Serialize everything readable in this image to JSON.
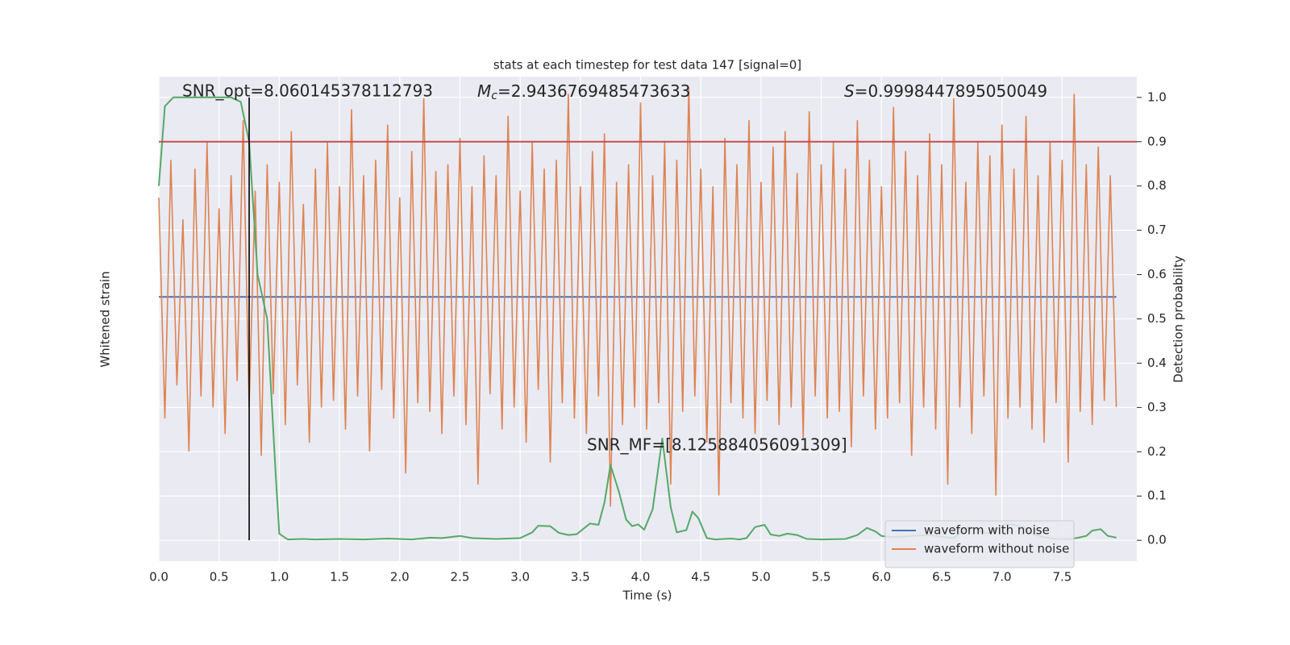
{
  "chart_data": {
    "type": "line",
    "title": "stats at each timestep for test data 147 [signal=0]",
    "xlabel": "Time (s)",
    "ylabel": "Whitened strain",
    "y2label": "Detection probability",
    "xlim": [
      0,
      8.12
    ],
    "xticks": [
      {
        "value": 0,
        "label": "0.0"
      },
      0.5,
      {
        "value": 1,
        "label": "1.0"
      },
      1.5,
      {
        "value": 2,
        "label": "2.0"
      },
      2.5,
      {
        "value": 3,
        "label": "3.0"
      },
      3.5,
      {
        "value": 4,
        "label": "4.0"
      },
      4.5,
      {
        "value": 5,
        "label": "5.0"
      },
      5.5,
      {
        "value": 6,
        "label": "6.0"
      },
      6.5,
      {
        "value": 7,
        "label": "7.0"
      },
      7.5
    ],
    "ylim": [
      -1.2,
      1
    ],
    "y2lim": [
      -0.047,
      1.047
    ],
    "y2ticks": [
      {
        "value": 0,
        "label": "0.0"
      },
      0.1,
      0.2,
      0.3,
      0.4,
      0.5,
      0.6,
      0.7,
      0.8,
      0.9,
      {
        "value": 1,
        "label": "1.0"
      }
    ],
    "grid": true,
    "legend": "lower right",
    "series": [
      {
        "name": "waveform with noise",
        "color": "#4c72b0",
        "x": [
          0,
          7.95
        ],
        "values": [
          0,
          0
        ]
      },
      {
        "name": "waveform without noise",
        "color": "#dd8452",
        "x": [
          0,
          0.05,
          0.1,
          0.15,
          0.2,
          0.25,
          0.3,
          0.35,
          0.4,
          0.45,
          0.5,
          0.55,
          0.6,
          0.65,
          0.7,
          0.75,
          0.8,
          0.85,
          0.9,
          0.95,
          1,
          1.05,
          1.1,
          1.15,
          1.2,
          1.25,
          1.3,
          1.35,
          1.4,
          1.45,
          1.5,
          1.55,
          1.6,
          1.65,
          1.7,
          1.75,
          1.8,
          1.85,
          1.9,
          1.95,
          2,
          2.05,
          2.1,
          2.15,
          2.2,
          2.25,
          2.3,
          2.35,
          2.4,
          2.45,
          2.5,
          2.55,
          2.6,
          2.65,
          2.7,
          2.75,
          2.8,
          2.85,
          2.9,
          2.95,
          3,
          3.05,
          3.1,
          3.15,
          3.2,
          3.25,
          3.3,
          3.35,
          3.4,
          3.45,
          3.5,
          3.55,
          3.6,
          3.65,
          3.7,
          3.75,
          3.8,
          3.85,
          3.9,
          3.95,
          4,
          4.05,
          4.1,
          4.15,
          4.2,
          4.25,
          4.3,
          4.35,
          4.4,
          4.45,
          4.5,
          4.55,
          4.6,
          4.65,
          4.7,
          4.75,
          4.8,
          4.85,
          4.9,
          4.95,
          5,
          5.05,
          5.1,
          5.15,
          5.2,
          5.25,
          5.3,
          5.35,
          5.4,
          5.45,
          5.5,
          5.55,
          5.6,
          5.65,
          5.7,
          5.75,
          5.8,
          5.85,
          5.9,
          5.95,
          6,
          6.05,
          6.1,
          6.15,
          6.2,
          6.25,
          6.3,
          6.35,
          6.4,
          6.45,
          6.5,
          6.55,
          6.6,
          6.65,
          6.7,
          6.75,
          6.8,
          6.85,
          6.9,
          6.95,
          7,
          7.05,
          7.1,
          7.15,
          7.2,
          7.25,
          7.3,
          7.35,
          7.4,
          7.45,
          7.5,
          7.55,
          7.6,
          7.65,
          7.7,
          7.75,
          7.8,
          7.85,
          7.9,
          7.95
        ],
        "values": [
          0.45,
          -0.55,
          0.62,
          -0.4,
          0.35,
          -0.7,
          0.58,
          -0.45,
          0.7,
          -0.5,
          0.4,
          -0.62,
          0.55,
          -0.38,
          0.8,
          -0.5,
          0.48,
          -0.72,
          0.6,
          -0.44,
          0.52,
          -0.58,
          0.75,
          -0.4,
          0.42,
          -0.66,
          0.58,
          -0.5,
          0.7,
          -0.47,
          0.5,
          -0.6,
          0.85,
          -0.45,
          0.55,
          -0.7,
          0.62,
          -0.42,
          0.78,
          -0.55,
          0.45,
          -0.8,
          0.66,
          -0.48,
          0.9,
          -0.52,
          0.57,
          -0.62,
          0.6,
          -0.45,
          0.72,
          -0.58,
          0.5,
          -0.85,
          0.64,
          -0.44,
          0.55,
          -0.6,
          0.82,
          -0.5,
          0.48,
          -0.66,
          0.7,
          -0.42,
          0.58,
          -0.75,
          0.62,
          -0.48,
          0.92,
          -0.55,
          0.5,
          -0.62,
          0.66,
          -0.45,
          0.74,
          -0.95,
          0.52,
          -0.58,
          0.6,
          -0.5,
          0.88,
          -0.6,
          0.55,
          -0.48,
          0.7,
          -0.85,
          0.62,
          -0.52,
          0.95,
          -0.45,
          0.58,
          -0.66,
          0.5,
          -0.9,
          0.72,
          -0.48,
          0.6,
          -0.55,
          0.8,
          -0.62,
          0.52,
          -0.47,
          0.68,
          -0.58,
          0.75,
          -0.5,
          0.56,
          -0.64,
          0.84,
          -0.45,
          0.6,
          -0.55,
          0.7,
          -0.52,
          0.58,
          -0.68,
          0.8,
          -0.45,
          0.62,
          -0.6,
          0.5,
          -0.55,
          0.86,
          -0.48,
          0.66,
          -0.72,
          0.55,
          -0.5,
          0.74,
          -0.6,
          0.6,
          -0.85,
          0.9,
          -0.5,
          0.52,
          -0.62,
          0.7,
          -0.45,
          0.64,
          -0.9,
          0.78,
          -0.55,
          0.58,
          -0.5,
          0.82,
          -0.6,
          0.55,
          -0.66,
          0.7,
          -0.48,
          0.62,
          -0.75,
          0.92,
          -0.52,
          0.6,
          -0.58,
          0.68,
          -0.47,
          0.55,
          -0.5
        ]
      },
      {
        "color": "#55a868",
        "axis": "y2",
        "x": [
          0,
          0.05,
          0.12,
          0.2,
          0.3,
          0.4,
          0.5,
          0.6,
          0.68,
          0.75,
          0.82,
          0.9,
          0.97,
          1,
          1.07,
          1.2,
          1.3,
          1.5,
          1.7,
          1.9,
          2.1,
          2.25,
          2.35,
          2.5,
          2.6,
          2.8,
          3,
          3.1,
          3.15,
          3.25,
          3.32,
          3.4,
          3.47,
          3.58,
          3.65,
          3.7,
          3.75,
          3.82,
          3.88,
          3.93,
          3.98,
          4.03,
          4.1,
          4.18,
          4.25,
          4.3,
          4.38,
          4.43,
          4.48,
          4.55,
          4.62,
          4.75,
          4.82,
          4.88,
          4.95,
          5.03,
          5.08,
          5.15,
          5.22,
          5.3,
          5.38,
          5.5,
          5.7,
          5.8,
          5.88,
          5.95,
          6,
          6.1,
          6.25,
          6.4,
          6.5,
          6.6,
          6.72,
          6.8,
          6.88,
          6.95,
          7.03,
          7.1,
          7.18,
          7.25,
          7.35,
          7.45,
          7.55,
          7.62,
          7.7,
          7.75,
          7.82,
          7.88,
          7.95
        ],
        "values": [
          0.8,
          0.98,
          1,
          1,
          1,
          1,
          1,
          1,
          0.99,
          0.9,
          0.6,
          0.5,
          0.15,
          0.015,
          0.002,
          0.003,
          0.002,
          0.003,
          0.002,
          0.004,
          0.002,
          0.006,
          0.005,
          0.01,
          0.005,
          0.003,
          0.005,
          0.018,
          0.033,
          0.032,
          0.017,
          0.012,
          0.014,
          0.038,
          0.035,
          0.085,
          0.17,
          0.11,
          0.047,
          0.032,
          0.036,
          0.024,
          0.07,
          0.23,
          0.075,
          0.018,
          0.023,
          0.065,
          0.05,
          0.005,
          0.002,
          0.004,
          0.002,
          0.005,
          0.03,
          0.035,
          0.013,
          0.01,
          0.015,
          0.012,
          0.003,
          0.002,
          0.003,
          0.012,
          0.028,
          0.02,
          0.01,
          0.007,
          0.01,
          0.012,
          0.008,
          0.005,
          0.03,
          0.025,
          0.015,
          0.025,
          0.037,
          0.035,
          0.03,
          0.015,
          0.007,
          0.003,
          0.003,
          0.005,
          0.01,
          0.022,
          0.025,
          0.01,
          0.006
        ]
      }
    ],
    "hline": {
      "value": 0.9,
      "color": "#c44e52",
      "axis": "y2"
    },
    "vline": {
      "value": 0.75,
      "color": "#000000"
    },
    "annotations": [
      {
        "text": "SNR_opt=8.060145378112793"
      },
      {
        "symbol": "M",
        "sub": "c",
        "text": "=2.9436769485473633"
      },
      {
        "symbol": "S",
        "text": "=0.9998447895050049"
      },
      {
        "text": "SNR_MF=[8.125884056091309]"
      }
    ]
  }
}
